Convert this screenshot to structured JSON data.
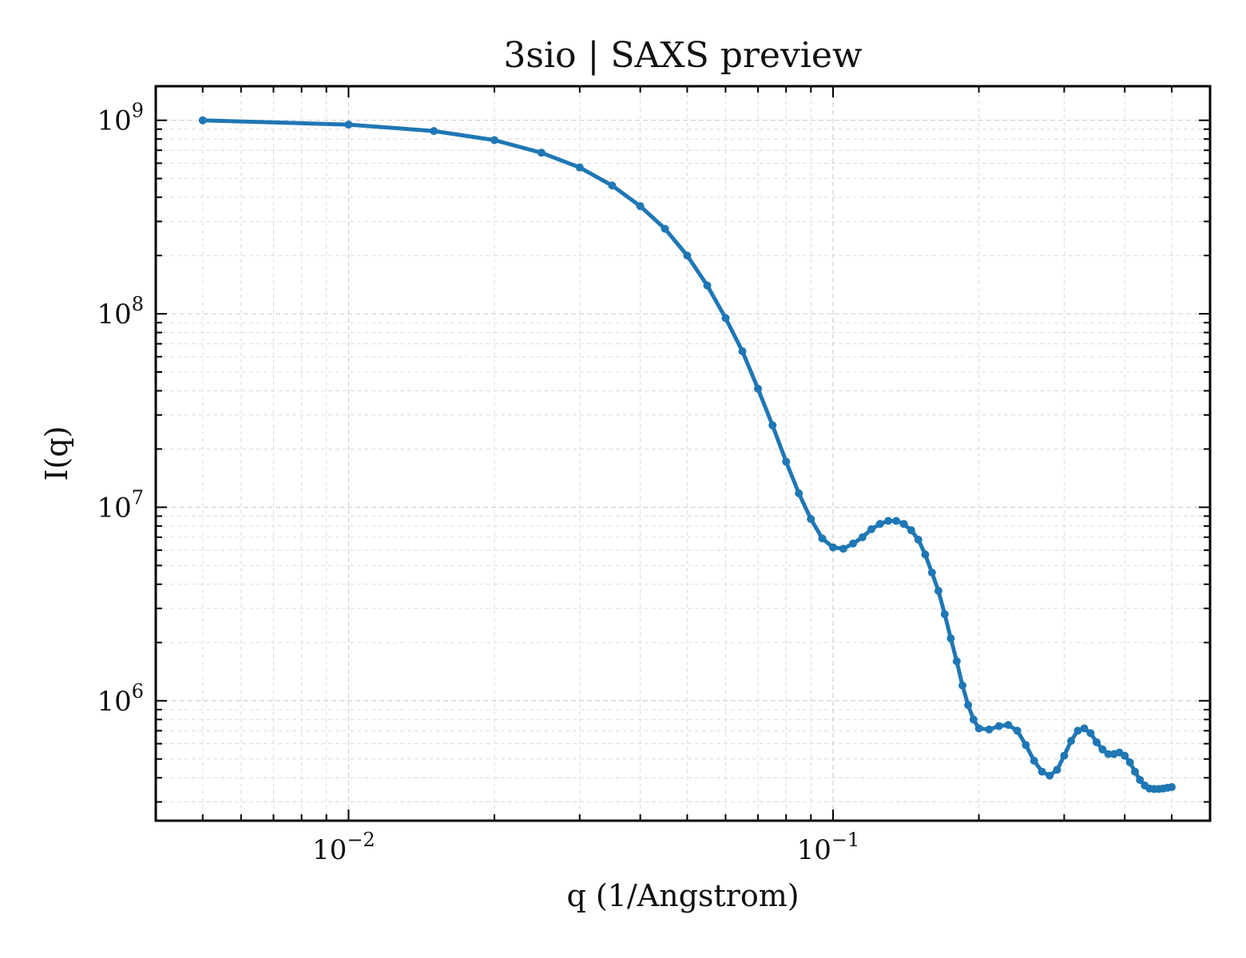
{
  "chart_data": {
    "type": "line",
    "title": "3sio | SAXS preview",
    "xlabel": "q (1/Angstrom)",
    "ylabel": "I(q)",
    "xscale": "log",
    "yscale": "log",
    "xlim": [
      0.004,
      0.6
    ],
    "ylim": [
      240000,
      1500000000
    ],
    "x_ticks": [
      {
        "base": "10",
        "exp": "−2",
        "value": 0.01
      },
      {
        "base": "10",
        "exp": "−1",
        "value": 0.1
      }
    ],
    "y_ticks": [
      {
        "base": "10",
        "exp": "6",
        "value": 1000000
      },
      {
        "base": "10",
        "exp": "7",
        "value": 10000000
      },
      {
        "base": "10",
        "exp": "8",
        "value": 100000000
      },
      {
        "base": "10",
        "exp": "9",
        "value": 1000000000
      }
    ],
    "grid": true,
    "color": "#1f77b4",
    "series": [
      {
        "x": [
          0.005,
          0.01,
          0.015,
          0.02,
          0.025,
          0.03,
          0.035,
          0.04,
          0.045,
          0.05,
          0.055,
          0.06,
          0.065,
          0.07,
          0.075,
          0.08,
          0.085,
          0.09,
          0.095,
          0.1,
          0.105,
          0.11,
          0.115,
          0.12,
          0.125,
          0.13,
          0.135,
          0.14,
          0.145,
          0.15,
          0.155,
          0.16,
          0.165,
          0.17,
          0.175,
          0.18,
          0.185,
          0.19,
          0.195,
          0.2,
          0.21,
          0.22,
          0.23,
          0.24,
          0.25,
          0.26,
          0.27,
          0.28,
          0.29,
          0.3,
          0.31,
          0.32,
          0.33,
          0.34,
          0.35,
          0.36,
          0.37,
          0.38,
          0.39,
          0.4,
          0.41,
          0.42,
          0.43,
          0.44,
          0.45,
          0.46,
          0.47,
          0.48,
          0.49,
          0.5
        ],
        "y": [
          1000000000,
          950000000,
          880000000,
          790000000,
          680000000,
          570000000,
          460000000,
          360000000,
          275000000,
          200000000,
          140000000,
          95000000,
          64000000,
          41000000,
          26500000,
          17200000,
          11800000,
          8700000,
          6900000,
          6200000,
          6100000,
          6500000,
          7000000,
          7700000,
          8200000,
          8500000,
          8500000,
          8200000,
          7600000,
          6800000,
          5700000,
          4600000,
          3700000,
          2800000,
          2100000,
          1600000,
          1200000,
          950000,
          800000,
          720000,
          710000,
          740000,
          750000,
          700000,
          590000,
          490000,
          430000,
          410000,
          440000,
          520000,
          620000,
          700000,
          720000,
          680000,
          610000,
          560000,
          530000,
          530000,
          540000,
          520000,
          480000,
          430000,
          390000,
          365000,
          352000,
          350000,
          350000,
          352000,
          355000,
          358000
        ]
      }
    ]
  }
}
